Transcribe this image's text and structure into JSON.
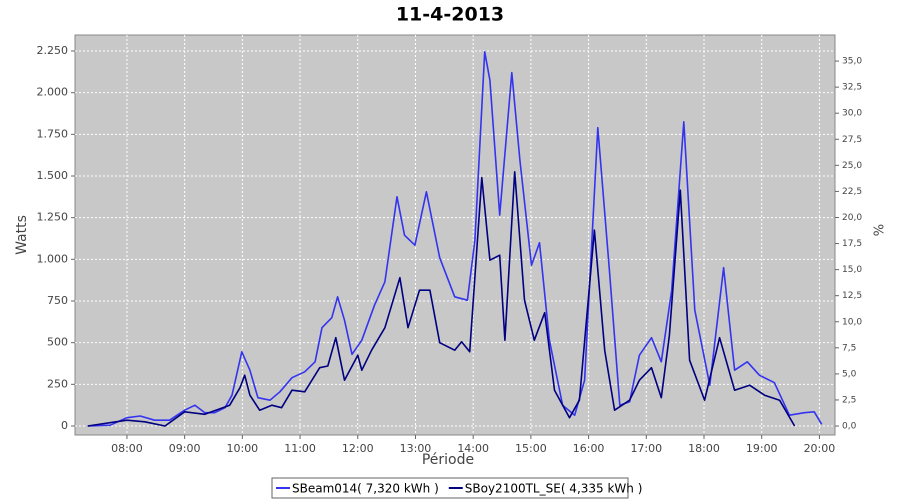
{
  "chart_data": {
    "type": "line",
    "title": "11-4-2013",
    "x_label": "Période",
    "y_label": "Watts",
    "y2_label": "%",
    "xlim": [
      7.1,
      20.27
    ],
    "xticks": [
      {
        "value": 8,
        "label": "08:00"
      },
      {
        "value": 9,
        "label": "09:00"
      },
      {
        "value": 10,
        "label": "10:00"
      },
      {
        "value": 11,
        "label": "11:00"
      },
      {
        "value": 12,
        "label": "12:00"
      },
      {
        "value": 13,
        "label": "13:00"
      },
      {
        "value": 14,
        "label": "14:00"
      },
      {
        "value": 15,
        "label": "15:00"
      },
      {
        "value": 16,
        "label": "16:00"
      },
      {
        "value": 17,
        "label": "17:00"
      },
      {
        "value": 18,
        "label": "18:00"
      },
      {
        "value": 19,
        "label": "19:00"
      },
      {
        "value": 20,
        "label": "20:00"
      }
    ],
    "ylim": [
      -54,
      2346
    ],
    "yticks": [
      0,
      250,
      500,
      750,
      {
        "value": 1000,
        "label": "1.000"
      },
      {
        "value": 1250,
        "label": "1.250"
      },
      {
        "value": 1500,
        "label": "1.500"
      },
      {
        "value": 1750,
        "label": "1.750"
      },
      {
        "value": 2000,
        "label": "2.000"
      },
      {
        "value": 2250,
        "label": "2.250"
      }
    ],
    "y2lim": [
      -0.86,
      37.5
    ],
    "y2ticks": [
      {
        "value": 0,
        "label": "0,0"
      },
      {
        "value": 2.5,
        "label": "2,5"
      },
      {
        "value": 5,
        "label": "5,0"
      },
      {
        "value": 7.5,
        "label": "7,5"
      },
      {
        "value": 10,
        "label": "10,0"
      },
      {
        "value": 12.5,
        "label": "12,5"
      },
      {
        "value": 15,
        "label": "15,0"
      },
      {
        "value": 17.5,
        "label": "17,5"
      },
      {
        "value": 20,
        "label": "20,0"
      },
      {
        "value": 22.5,
        "label": "22,5"
      },
      {
        "value": 25,
        "label": "25,0"
      },
      {
        "value": 27.5,
        "label": "27,5"
      },
      {
        "value": 30,
        "label": "30,0"
      },
      {
        "value": 32.5,
        "label": "32,5"
      },
      {
        "value": 35,
        "label": "35,0"
      }
    ],
    "grid": true,
    "legend": "bottom",
    "series": [
      {
        "name": "SBeam014( 7,320 kWh )",
        "color": "#3434f0",
        "x": [
          7.32,
          7.71,
          8.0,
          8.23,
          8.48,
          8.74,
          9.0,
          9.18,
          9.35,
          9.52,
          9.7,
          9.82,
          9.99,
          10.13,
          10.27,
          10.48,
          10.65,
          10.86,
          11.08,
          11.26,
          11.38,
          11.55,
          11.65,
          11.77,
          11.9,
          12.07,
          12.29,
          12.47,
          12.68,
          12.81,
          12.99,
          13.19,
          13.42,
          13.68,
          13.9,
          14.03,
          14.2,
          14.29,
          14.46,
          14.67,
          14.81,
          15.01,
          15.15,
          15.32,
          15.55,
          15.76,
          15.93,
          16.16,
          16.36,
          16.54,
          16.71,
          16.88,
          17.09,
          17.26,
          17.44,
          17.65,
          17.84,
          18.1,
          18.34,
          18.53,
          18.75,
          18.96,
          19.22,
          19.48,
          19.74,
          19.91,
          20.04
        ],
        "values": [
          0,
          5,
          50,
          60,
          35,
          35,
          95,
          125,
          80,
          80,
          110,
          185,
          445,
          335,
          170,
          155,
          205,
          290,
          325,
          385,
          590,
          650,
          775,
          635,
          430,
          515,
          725,
          865,
          1375,
          1145,
          1085,
          1405,
          1010,
          775,
          755,
          1115,
          2245,
          2075,
          1265,
          2120,
          1595,
          965,
          1100,
          515,
          125,
          65,
          275,
          1790,
          935,
          125,
          145,
          425,
          530,
          385,
          815,
          1825,
          695,
          245,
          950,
          335,
          385,
          305,
          260,
          65,
          80,
          85,
          10
        ]
      },
      {
        "name": "SBoy2100TL_SE( 4,335 kWh )",
        "color": "#000080",
        "x": [
          7.32,
          8.0,
          8.31,
          8.66,
          9.0,
          9.35,
          9.78,
          9.96,
          10.04,
          10.13,
          10.3,
          10.51,
          10.68,
          10.86,
          11.08,
          11.34,
          11.48,
          11.62,
          11.77,
          12.0,
          12.07,
          12.24,
          12.47,
          12.73,
          12.87,
          13.07,
          13.25,
          13.42,
          13.68,
          13.8,
          13.94,
          14.15,
          14.29,
          14.46,
          14.55,
          14.72,
          14.89,
          15.06,
          15.24,
          15.41,
          15.67,
          15.84,
          16.1,
          16.28,
          16.45,
          16.71,
          16.88,
          17.09,
          17.26,
          17.4,
          17.59,
          17.75,
          18.01,
          18.27,
          18.53,
          18.79,
          19.05,
          19.31,
          19.57
        ],
        "values": [
          0,
          35,
          25,
          0,
          85,
          70,
          125,
          230,
          305,
          185,
          95,
          125,
          110,
          215,
          205,
          350,
          360,
          530,
          275,
          425,
          335,
          455,
          590,
          890,
          590,
          815,
          815,
          500,
          455,
          505,
          445,
          1490,
          995,
          1025,
          515,
          1525,
          755,
          515,
          680,
          215,
          50,
          155,
          1175,
          455,
          95,
          155,
          275,
          350,
          170,
          545,
          1415,
          395,
          155,
          530,
          215,
          245,
          185,
          155,
          0
        ]
      }
    ]
  }
}
